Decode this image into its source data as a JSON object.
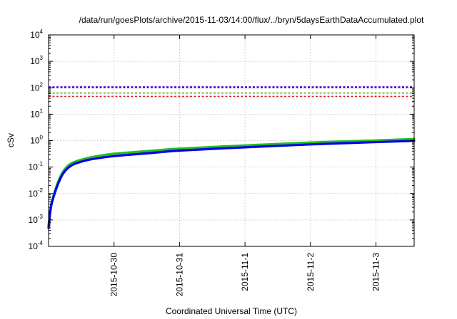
{
  "chart_data": {
    "type": "line",
    "title": "/data/run/goesPlots/archive/2015-11-03/14:00/flux/../bryn/5daysEarthDataAccumulated.plot",
    "xlabel": "Coordinated Universal Time (UTC)",
    "ylabel": "cSv",
    "x_type": "date",
    "xlim": [
      "2015-10-29T00:00",
      "2015-11-03T14:00"
    ],
    "y_scale": "log",
    "ylim": [
      0.0001,
      10000
    ],
    "grid": true,
    "x_ticks": [
      "2015-10-30",
      "2015-10-31",
      "2015-11-1",
      "2015-11-2",
      "2015-11-3"
    ],
    "x_tick_dates": [
      "2015-10-30T00:00",
      "2015-10-31T00:00",
      "2015-11-01T00:00",
      "2015-11-02T00:00",
      "2015-11-03T00:00"
    ],
    "y_ticks": [
      {
        "base": "10",
        "exp": "-4",
        "value": 0.0001
      },
      {
        "base": "10",
        "exp": "-3",
        "value": 0.001
      },
      {
        "base": "10",
        "exp": "-2",
        "value": 0.01
      },
      {
        "base": "10",
        "exp": "-1",
        "value": 0.1
      },
      {
        "base": "10",
        "exp": "0",
        "value": 1
      },
      {
        "base": "10",
        "exp": "1",
        "value": 10
      },
      {
        "base": "10",
        "exp": "2",
        "value": 100
      },
      {
        "base": "10",
        "exp": "3",
        "value": 1000
      },
      {
        "base": "10",
        "exp": "4",
        "value": 10000
      }
    ],
    "reference_lines": [
      {
        "value": 110,
        "color": "#7b2fd0",
        "style": "dashed"
      },
      {
        "value": 100,
        "color": "#1a1aff",
        "style": "dashed"
      },
      {
        "value": 63,
        "color": "#22c022",
        "style": "dashed"
      },
      {
        "value": 47,
        "color": "#e02020",
        "style": "dashed"
      }
    ],
    "series": [
      {
        "color": "#22c022",
        "x": [
          "2015-10-29T00:00",
          "2015-10-29T01:00",
          "2015-10-29T03:00",
          "2015-10-29T05:00",
          "2015-10-29T07:00",
          "2015-10-29T09:00",
          "2015-10-29T12:00",
          "2015-10-29T16:00",
          "2015-10-30T00:00",
          "2015-10-30T12:00",
          "2015-10-31T00:00",
          "2015-11-01T00:00",
          "2015-11-02T00:00",
          "2015-11-03T00:00",
          "2015-11-03T14:00"
        ],
        "y": [
          0.0006,
          0.004,
          0.02,
          0.06,
          0.11,
          0.15,
          0.19,
          0.24,
          0.32,
          0.4,
          0.5,
          0.66,
          0.85,
          1.02,
          1.15
        ]
      },
      {
        "color": "#0000ee",
        "x": [
          "2015-10-29T00:00",
          "2015-10-29T01:00",
          "2015-10-29T03:00",
          "2015-10-29T05:00",
          "2015-10-29T07:00",
          "2015-10-29T09:00",
          "2015-10-29T12:00",
          "2015-10-29T16:00",
          "2015-10-30T00:00",
          "2015-10-30T12:00",
          "2015-10-31T00:00",
          "2015-11-01T00:00",
          "2015-11-02T00:00",
          "2015-11-03T00:00",
          "2015-11-03T14:00"
        ],
        "y": [
          0.0005,
          0.0035,
          0.017,
          0.05,
          0.09,
          0.125,
          0.16,
          0.2,
          0.26,
          0.33,
          0.42,
          0.56,
          0.72,
          0.88,
          0.98
        ]
      }
    ]
  }
}
